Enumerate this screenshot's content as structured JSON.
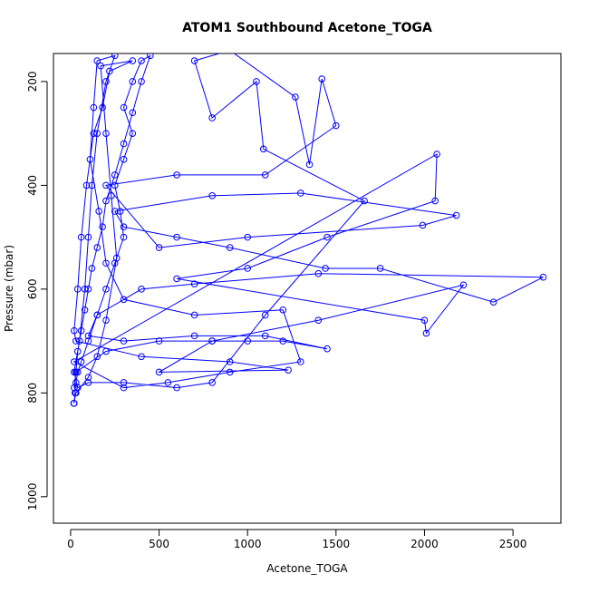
{
  "chart_data": {
    "type": "line",
    "title": "ATOM1 Southbound Acetone_TOGA",
    "xlabel": "Acetone_TOGA",
    "ylabel": "Pressure (mbar)",
    "xlim": [
      -97,
      2771
    ],
    "ylim": [
      1051,
      146
    ],
    "y_inverted": true,
    "xticks": [
      0,
      500,
      1000,
      1500,
      2000,
      2500
    ],
    "yticks": [
      200,
      400,
      600,
      800,
      1000
    ],
    "marker": "circle",
    "x": [
      20,
      25,
      30,
      40,
      60,
      100,
      150,
      200,
      250,
      300,
      280,
      250,
      300,
      350,
      300,
      350,
      400,
      450,
      400,
      350,
      300,
      250,
      200,
      180,
      150,
      120,
      100,
      80,
      60,
      40,
      30,
      20,
      30,
      200,
      500,
      800,
      1000,
      1200,
      1450,
      1100,
      700,
      300,
      100,
      150,
      400,
      700,
      1400,
      2671,
      2390,
      1750,
      1440,
      900,
      600,
      300,
      250,
      800,
      1300,
      2180,
      1990,
      1000,
      500,
      200,
      600,
      1100,
      1500,
      1420,
      1350,
      1270,
      900,
      700,
      800,
      1050,
      1090,
      1660,
      1100,
      800,
      600,
      300,
      100,
      40,
      20,
      50,
      80,
      100,
      120,
      150,
      200,
      250,
      150,
      130,
      110,
      160,
      200,
      300,
      700,
      1200,
      1300,
      900,
      550,
      300,
      20,
      2070,
      2060,
      1450,
      1000,
      600,
      2000,
      2010,
      2220,
      1400,
      800,
      500,
      1230,
      900,
      400,
      30,
      20,
      40,
      60,
      90,
      130,
      180,
      220,
      350,
      170,
      200,
      230,
      260,
      200,
      150,
      100,
      30,
      18
    ],
    "series": [
      {
        "color": "#0000ff",
        "values": [
          820,
          800,
          780,
          760,
          740,
          700,
          650,
          600,
          550,
          500,
          450,
          400,
          350,
          300,
          250,
          200,
          160,
          150,
          200,
          260,
          320,
          380,
          430,
          480,
          520,
          560,
          600,
          640,
          680,
          720,
          760,
          790,
          760,
          720,
          700,
          700,
          700,
          700,
          715,
          690,
          690,
          700,
          690,
          650,
          600,
          590,
          570,
          577,
          625,
          560,
          560,
          520,
          500,
          480,
          450,
          420,
          415,
          458,
          477,
          500,
          520,
          400,
          380,
          380,
          285,
          195,
          360,
          230,
          140,
          160,
          270,
          200,
          330,
          430,
          650,
          780,
          790,
          780,
          780,
          790,
          760,
          700,
          600,
          500,
          400,
          300,
          200,
          150,
          160,
          250,
          350,
          450,
          550,
          620,
          650,
          640,
          740,
          760,
          780,
          790,
          740,
          340,
          430,
          500,
          560,
          580,
          660,
          685,
          592,
          660,
          700,
          760,
          756,
          740,
          730,
          700,
          680,
          600,
          500,
          400,
          300,
          250,
          180,
          160,
          170,
          300,
          420,
          540,
          660,
          730,
          770,
          800,
          820
        ]
      }
    ]
  }
}
